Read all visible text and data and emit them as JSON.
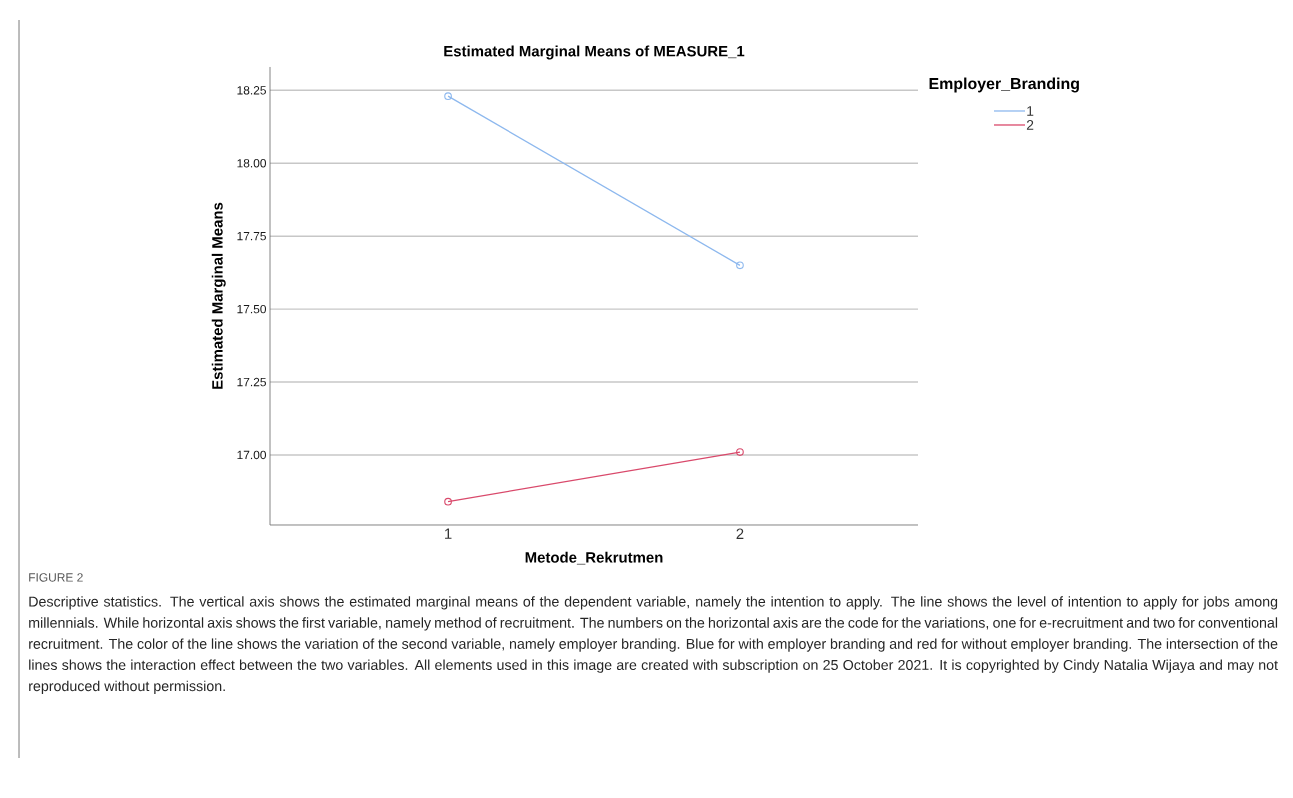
{
  "chart_data": {
    "type": "line",
    "title": "Estimated Marginal Means of MEASURE_1",
    "xlabel": "Metode_Rekrutmen",
    "ylabel": "Estimated Marginal Means",
    "legend_title": "Employer_Branding",
    "categories": [
      "1",
      "2"
    ],
    "series": [
      {
        "name": "1",
        "color": "#8db8ee",
        "values": [
          18.23,
          17.65
        ]
      },
      {
        "name": "2",
        "color": "#d9496b",
        "values": [
          16.84,
          17.01
        ]
      }
    ],
    "ylim": [
      16.76,
      18.33
    ],
    "yticks": [
      {
        "value": 17.0,
        "label": "17.00"
      },
      {
        "value": 17.25,
        "label": "17.25"
      },
      {
        "value": 17.5,
        "label": "17.50"
      },
      {
        "value": 17.75,
        "label": "17.75"
      },
      {
        "value": 18.0,
        "label": "18.00"
      },
      {
        "value": 18.25,
        "label": "18.25"
      }
    ],
    "grid": "y",
    "legend": "right",
    "marker": "circle",
    "line_style": "solid",
    "annotations": [
      "FIGURE 2",
      "Descriptive statistics. The vertical axis shows the estimated marginal means of the dependent variable, namely the intention to apply. The line shows the level of intention to apply for jobs among millennials. While horizontal axis shows the first variable, namely method of recruitment. The numbers on the horizontal axis are the code for the variations, one for e-recruitment and two for conventional recruitment. The color of the line shows the variation of the second variable, namely employer branding. Blue for with employer branding and red for without employer branding. The intersection of the lines shows the interaction effect between the two variables. All elements used in this image are created with subscription on 25 October 2021. It is copyrighted by Cindy Natalia Wijaya and may not reproduced without permission."
    ]
  }
}
